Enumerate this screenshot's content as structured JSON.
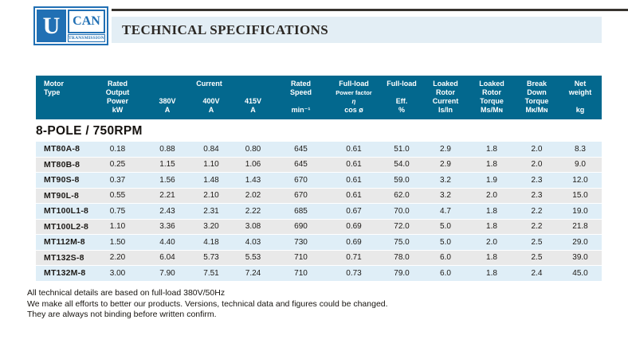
{
  "logo": {
    "u": "U",
    "can": "CAN",
    "transmission": "TRANSMISSION"
  },
  "page_header": {
    "title": "TECHNICAL SPECIFICATIONS"
  },
  "section": {
    "title": "8-POLE / 750RPM"
  },
  "table": {
    "group_header": "Current",
    "columns": [
      {
        "lines": [
          "Motor",
          "Type",
          "",
          ""
        ]
      },
      {
        "lines": [
          "Rated",
          "Output",
          "Power",
          "kW"
        ]
      },
      {
        "lines": [
          "",
          "",
          "380V",
          "A"
        ]
      },
      {
        "lines": [
          "",
          "",
          "400V",
          "A"
        ]
      },
      {
        "lines": [
          "",
          "",
          "415V",
          "A"
        ]
      },
      {
        "lines": [
          "Rated",
          "Speed",
          "",
          "min⁻¹"
        ]
      },
      {
        "lines": [
          "Full-load",
          "Power factor",
          "η",
          "cos ø"
        ]
      },
      {
        "lines": [
          "Full-load",
          "",
          "Eff.",
          "%"
        ]
      },
      {
        "lines": [
          "Loaked",
          "Rotor",
          "Current",
          "Is/In"
        ]
      },
      {
        "lines": [
          "Loaked",
          "Rotor",
          "Torque",
          "Ms/Mɴ"
        ]
      },
      {
        "lines": [
          "Break",
          "Down",
          "Torque",
          "Mᴋ/Mɴ"
        ]
      },
      {
        "lines": [
          "Net",
          "weight",
          "",
          "kg"
        ]
      }
    ],
    "rows": [
      [
        "MT80A-8",
        "0.18",
        "0.88",
        "0.84",
        "0.80",
        "645",
        "0.61",
        "51.0",
        "2.9",
        "1.8",
        "2.0",
        "8.3"
      ],
      [
        "MT80B-8",
        "0.25",
        "1.15",
        "1.10",
        "1.06",
        "645",
        "0.61",
        "54.0",
        "2.9",
        "1.8",
        "2.0",
        "9.0"
      ],
      [
        "MT90S-8",
        "0.37",
        "1.56",
        "1.48",
        "1.43",
        "670",
        "0.61",
        "59.0",
        "3.2",
        "1.9",
        "2.3",
        "12.0"
      ],
      [
        "MT90L-8",
        "0.55",
        "2.21",
        "2.10",
        "2.02",
        "670",
        "0.61",
        "62.0",
        "3.2",
        "2.0",
        "2.3",
        "15.0"
      ],
      [
        "MT100L1-8",
        "0.75",
        "2.43",
        "2.31",
        "2.22",
        "685",
        "0.67",
        "70.0",
        "4.7",
        "1.8",
        "2.2",
        "19.0"
      ],
      [
        "MT100L2-8",
        "1.10",
        "3.36",
        "3.20",
        "3.08",
        "690",
        "0.69",
        "72.0",
        "5.0",
        "1.8",
        "2.2",
        "21.8"
      ],
      [
        "MT112M-8",
        "1.50",
        "4.40",
        "4.18",
        "4.03",
        "730",
        "0.69",
        "75.0",
        "5.0",
        "2.0",
        "2.5",
        "29.0"
      ],
      [
        "MT132S-8",
        "2.20",
        "6.04",
        "5.73",
        "5.53",
        "710",
        "0.71",
        "78.0",
        "6.0",
        "1.8",
        "2.5",
        "39.0"
      ],
      [
        "MT132M-8",
        "3.00",
        "7.90",
        "7.51",
        "7.24",
        "710",
        "0.73",
        "79.0",
        "6.0",
        "1.8",
        "2.4",
        "45.0"
      ]
    ]
  },
  "notes": [
    "All technical details are based on full-load 380V/50Hz",
    "We make all efforts to better our products. Versions, technical data and figures could be changed.",
    "They are always not binding before written confirm."
  ],
  "colors": {
    "header_bg": "#03688e",
    "row_blue": "#dfeef7",
    "row_gray": "#e9e9e9",
    "title_band_bg": "#e3eef5",
    "logo_blue": "#2170b4"
  }
}
